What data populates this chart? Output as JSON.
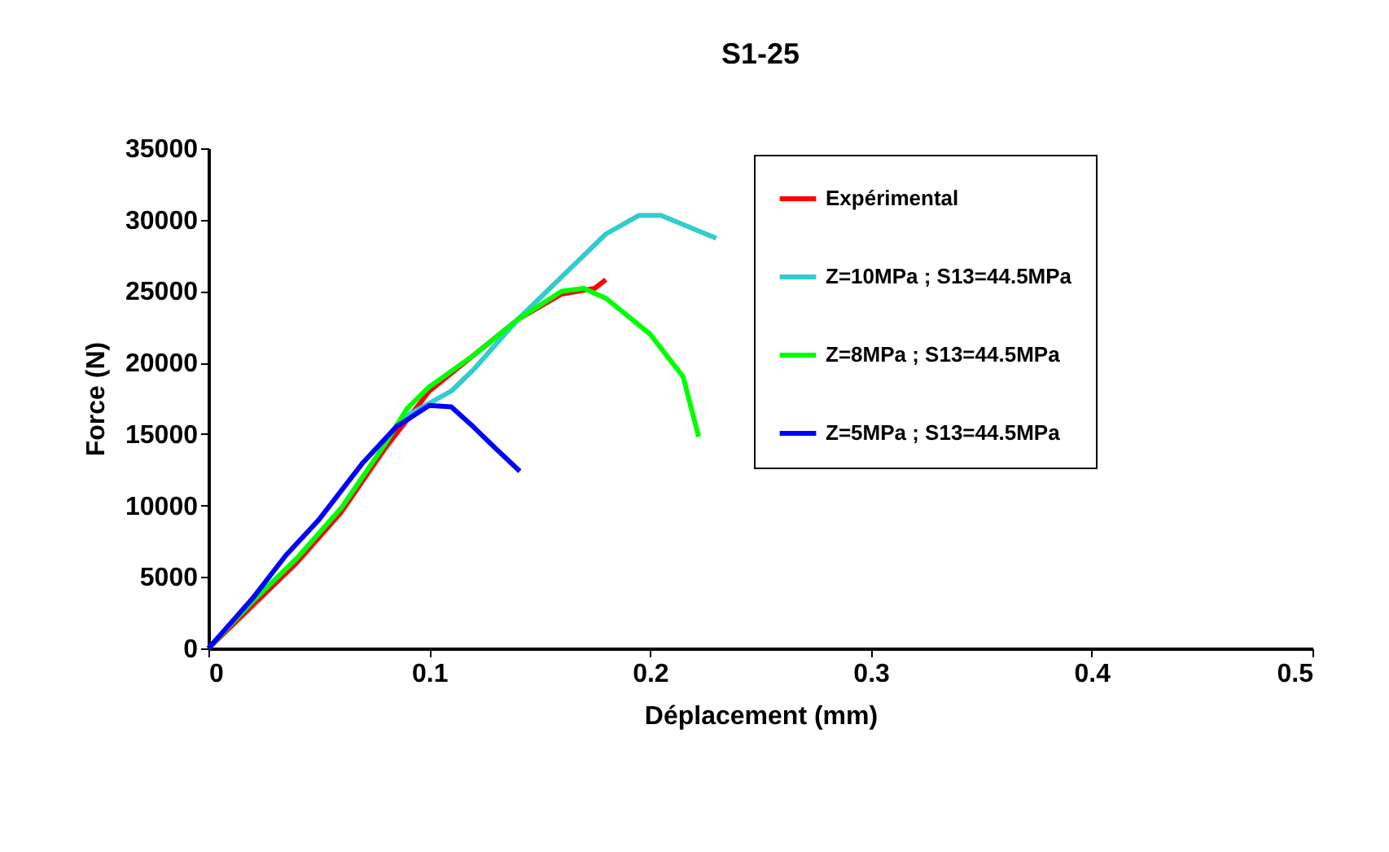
{
  "chart_data": {
    "type": "line",
    "title": "S1-25",
    "xlabel": "Déplacement (mm)",
    "ylabel": "Force (N)",
    "xlim": [
      0,
      0.5
    ],
    "xticks": [
      0,
      0.1,
      0.2,
      0.3,
      0.4,
      0.5
    ],
    "ylim": [
      0,
      35000
    ],
    "yticks": [
      0,
      5000,
      10000,
      15000,
      20000,
      25000,
      30000,
      35000
    ],
    "grid": false,
    "legend": "right",
    "marker": "none",
    "line_style": "solid",
    "series": [
      {
        "name": "Expérimental",
        "color": "#ff0000",
        "x": [
          0,
          0.02,
          0.04,
          0.06,
          0.08,
          0.1,
          0.12,
          0.14,
          0.16,
          0.175,
          0.18
        ],
        "values": [
          0,
          3000,
          6000,
          9500,
          14000,
          18000,
          20500,
          23000,
          24800,
          25200,
          25800
        ]
      },
      {
        "name": "Z=10MPa ; S13=44.5MPa",
        "color": "#33cccc",
        "x": [
          0.085,
          0.09,
          0.11,
          0.12,
          0.14,
          0.16,
          0.18,
          0.195,
          0.205,
          0.23
        ],
        "values": [
          15500,
          16300,
          18000,
          19500,
          23000,
          26000,
          29000,
          30300,
          30300,
          28700
        ]
      },
      {
        "name": "Z=8MPa ; S13=44.5MPa",
        "color": "#00ff00",
        "x": [
          0,
          0.02,
          0.04,
          0.06,
          0.08,
          0.09,
          0.1,
          0.12,
          0.14,
          0.16,
          0.17,
          0.18,
          0.2,
          0.215,
          0.222
        ],
        "values": [
          0,
          3300,
          6300,
          9800,
          14300,
          16800,
          18300,
          20500,
          23000,
          25000,
          25200,
          24500,
          22000,
          19000,
          14800
        ]
      },
      {
        "name": "Z=5MPa ; S13=44.5MPa",
        "color": "#0000ff",
        "x": [
          0,
          0.02,
          0.035,
          0.05,
          0.07,
          0.085,
          0.1,
          0.11,
          0.12,
          0.13,
          0.141
        ],
        "values": [
          0,
          3500,
          6500,
          9000,
          13000,
          15500,
          17000,
          16900,
          15500,
          14000,
          12400
        ]
      }
    ]
  }
}
